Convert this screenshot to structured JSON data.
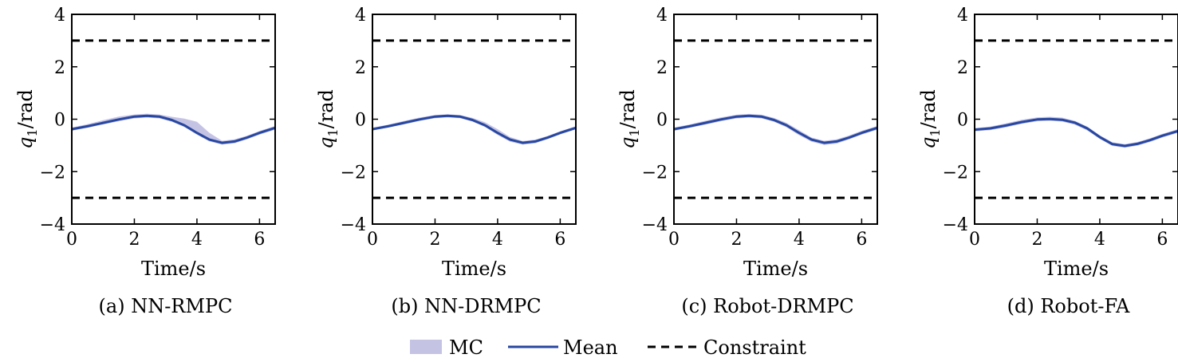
{
  "legend": {
    "mc_label": "MC",
    "mean_label": "Mean",
    "constraint_label": "Constraint",
    "colors": {
      "mc": "#c5c3e4",
      "mean": "#2747a0",
      "constraint": "#000000"
    }
  },
  "chart_data": [
    {
      "type": "line",
      "caption": "(a) NN-RMPC",
      "xlabel": "Time/s",
      "ylabel_main": "q",
      "ylabel_sub": "1",
      "ylabel_unit": "/rad",
      "xlim": [
        0,
        6.5
      ],
      "ylim": [
        -4,
        4
      ],
      "xticks": [
        0,
        2,
        4,
        6
      ],
      "xtick_labels": [
        "0",
        "2",
        "4",
        "6"
      ],
      "yticks": [
        -4,
        -2,
        0,
        2,
        4
      ],
      "ytick_labels": [
        "−4",
        "−2",
        "0",
        "2",
        "4"
      ],
      "constraint_upper": 3,
      "constraint_lower": -3,
      "x": [
        0,
        0.5,
        1.0,
        1.5,
        2.0,
        2.4,
        2.8,
        3.2,
        3.6,
        4.0,
        4.4,
        4.8,
        5.2,
        5.6,
        6.0,
        6.5
      ],
      "mean": [
        -0.38,
        -0.27,
        -0.14,
        -0.01,
        0.1,
        0.13,
        0.1,
        -0.03,
        -0.23,
        -0.52,
        -0.78,
        -0.9,
        -0.85,
        -0.7,
        -0.52,
        -0.33
      ],
      "mc_upper": [
        -0.32,
        -0.19,
        -0.04,
        0.1,
        0.18,
        0.21,
        0.18,
        0.09,
        0.02,
        -0.1,
        -0.52,
        -0.82,
        -0.77,
        -0.63,
        -0.45,
        -0.26
      ],
      "mc_lower": [
        -0.44,
        -0.33,
        -0.2,
        -0.08,
        0.03,
        0.06,
        0.03,
        -0.1,
        -0.3,
        -0.59,
        -0.85,
        -0.97,
        -0.92,
        -0.77,
        -0.59,
        -0.4
      ]
    },
    {
      "type": "line",
      "caption": "(b) NN-DRMPC",
      "xlabel": "Time/s",
      "ylabel_main": "q",
      "ylabel_sub": "1",
      "ylabel_unit": "/rad",
      "xlim": [
        0,
        6.5
      ],
      "ylim": [
        -4,
        4
      ],
      "xticks": [
        0,
        2,
        4,
        6
      ],
      "xtick_labels": [
        "0",
        "2",
        "4",
        "6"
      ],
      "yticks": [
        -4,
        -2,
        0,
        2,
        4
      ],
      "ytick_labels": [
        "−4",
        "−2",
        "0",
        "2",
        "4"
      ],
      "constraint_upper": 3,
      "constraint_lower": -3,
      "x": [
        0,
        0.5,
        1.0,
        1.5,
        2.0,
        2.4,
        2.8,
        3.2,
        3.6,
        4.0,
        4.4,
        4.8,
        5.2,
        5.6,
        6.0,
        6.5
      ],
      "mean": [
        -0.38,
        -0.27,
        -0.14,
        -0.01,
        0.1,
        0.13,
        0.1,
        -0.03,
        -0.23,
        -0.52,
        -0.78,
        -0.9,
        -0.85,
        -0.7,
        -0.52,
        -0.33
      ],
      "mc_upper": [
        -0.33,
        -0.21,
        -0.07,
        0.06,
        0.16,
        0.19,
        0.16,
        0.05,
        -0.12,
        -0.38,
        -0.68,
        -0.83,
        -0.78,
        -0.64,
        -0.46,
        -0.27
      ],
      "mc_lower": [
        -0.43,
        -0.32,
        -0.2,
        -0.07,
        0.04,
        0.07,
        0.04,
        -0.09,
        -0.3,
        -0.6,
        -0.86,
        -0.97,
        -0.92,
        -0.76,
        -0.58,
        -0.39
      ]
    },
    {
      "type": "line",
      "caption": "(c) Robot-DRMPC",
      "xlabel": "Time/s",
      "ylabel_main": "q",
      "ylabel_sub": "1",
      "ylabel_unit": "/rad",
      "xlim": [
        0,
        6.5
      ],
      "ylim": [
        -4,
        4
      ],
      "xticks": [
        0,
        2,
        4,
        6
      ],
      "xtick_labels": [
        "0",
        "2",
        "4",
        "6"
      ],
      "yticks": [
        -4,
        -2,
        0,
        2,
        4
      ],
      "ytick_labels": [
        "−4",
        "−2",
        "0",
        "2",
        "4"
      ],
      "constraint_upper": 3,
      "constraint_lower": -3,
      "x": [
        0,
        0.5,
        1.0,
        1.5,
        2.0,
        2.4,
        2.8,
        3.2,
        3.6,
        4.0,
        4.4,
        4.8,
        5.2,
        5.6,
        6.0,
        6.5
      ],
      "mean": [
        -0.38,
        -0.27,
        -0.14,
        -0.01,
        0.1,
        0.13,
        0.1,
        -0.03,
        -0.23,
        -0.52,
        -0.78,
        -0.9,
        -0.85,
        -0.7,
        -0.52,
        -0.33
      ],
      "mc_upper": [
        -0.32,
        -0.2,
        -0.06,
        0.07,
        0.17,
        0.2,
        0.17,
        0.05,
        -0.14,
        -0.42,
        -0.7,
        -0.82,
        -0.77,
        -0.62,
        -0.44,
        -0.26
      ],
      "mc_lower": [
        -0.44,
        -0.33,
        -0.21,
        -0.08,
        0.03,
        0.06,
        0.03,
        -0.1,
        -0.31,
        -0.61,
        -0.86,
        -0.98,
        -0.93,
        -0.77,
        -0.59,
        -0.4
      ]
    },
    {
      "type": "line",
      "caption": "(d) Robot-FA",
      "xlabel": "Time/s",
      "ylabel_main": "q",
      "ylabel_sub": "1",
      "ylabel_unit": "/rad",
      "xlim": [
        0,
        6.5
      ],
      "ylim": [
        -4,
        4
      ],
      "xticks": [
        0,
        2,
        4,
        6
      ],
      "xtick_labels": [
        "0",
        "2",
        "4",
        "6"
      ],
      "yticks": [
        -4,
        -2,
        0,
        2,
        4
      ],
      "ytick_labels": [
        "−4",
        "−2",
        "0",
        "2",
        "4"
      ],
      "constraint_upper": 3,
      "constraint_lower": -3,
      "x": [
        0,
        0.5,
        1.0,
        1.5,
        2.0,
        2.4,
        2.8,
        3.2,
        3.6,
        4.0,
        4.4,
        4.8,
        5.2,
        5.6,
        6.0,
        6.5
      ],
      "mean": [
        -0.4,
        -0.35,
        -0.24,
        -0.11,
        -0.01,
        0.01,
        -0.02,
        -0.13,
        -0.35,
        -0.68,
        -0.95,
        -1.02,
        -0.94,
        -0.8,
        -0.63,
        -0.45
      ],
      "mc_upper": [
        -0.34,
        -0.28,
        -0.16,
        -0.02,
        0.07,
        0.09,
        0.06,
        -0.06,
        -0.28,
        -0.61,
        -0.88,
        -0.95,
        -0.87,
        -0.73,
        -0.56,
        -0.38
      ],
      "mc_lower": [
        -0.46,
        -0.42,
        -0.31,
        -0.18,
        -0.08,
        -0.06,
        -0.09,
        -0.21,
        -0.43,
        -0.75,
        -1.02,
        -1.09,
        -1.01,
        -0.87,
        -0.7,
        -0.52
      ]
    }
  ]
}
